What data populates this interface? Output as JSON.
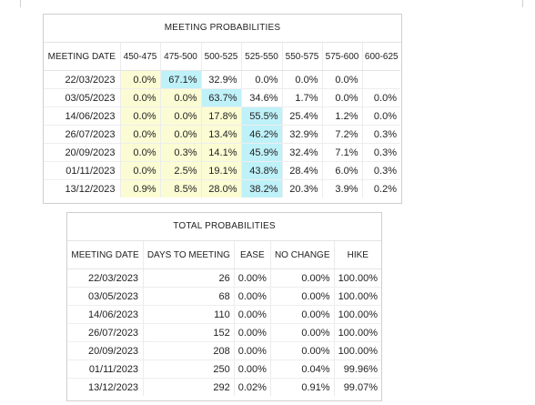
{
  "meeting": {
    "title": "MEETING PROBABILITIES",
    "headers": [
      "MEETING DATE",
      "450-475",
      "475-500",
      "500-525",
      "525-550",
      "550-575",
      "575-600",
      "600-625"
    ],
    "rows": [
      {
        "date": "22/03/2023",
        "cells": [
          {
            "v": "0.0%",
            "c": "yellow"
          },
          {
            "v": "67.1%",
            "c": "cyan"
          },
          {
            "v": "32.9%",
            "c": "white"
          },
          {
            "v": "0.0%",
            "c": "white"
          },
          {
            "v": "0.0%",
            "c": "white"
          },
          {
            "v": "0.0%",
            "c": "white"
          },
          {
            "v": "",
            "c": "white"
          }
        ]
      },
      {
        "date": "03/05/2023",
        "cells": [
          {
            "v": "0.0%",
            "c": "yellow"
          },
          {
            "v": "0.0%",
            "c": "yellow"
          },
          {
            "v": "63.7%",
            "c": "cyan"
          },
          {
            "v": "34.6%",
            "c": "white"
          },
          {
            "v": "1.7%",
            "c": "white"
          },
          {
            "v": "0.0%",
            "c": "white"
          },
          {
            "v": "0.0%",
            "c": "white"
          }
        ]
      },
      {
        "date": "14/06/2023",
        "cells": [
          {
            "v": "0.0%",
            "c": "yellow"
          },
          {
            "v": "0.0%",
            "c": "yellow"
          },
          {
            "v": "17.8%",
            "c": "yellow"
          },
          {
            "v": "55.5%",
            "c": "cyan"
          },
          {
            "v": "25.4%",
            "c": "white"
          },
          {
            "v": "1.2%",
            "c": "white"
          },
          {
            "v": "0.0%",
            "c": "white"
          }
        ]
      },
      {
        "date": "26/07/2023",
        "cells": [
          {
            "v": "0.0%",
            "c": "yellow"
          },
          {
            "v": "0.0%",
            "c": "yellow"
          },
          {
            "v": "13.4%",
            "c": "yellow"
          },
          {
            "v": "46.2%",
            "c": "cyan"
          },
          {
            "v": "32.9%",
            "c": "white"
          },
          {
            "v": "7.2%",
            "c": "white"
          },
          {
            "v": "0.3%",
            "c": "white"
          }
        ]
      },
      {
        "date": "20/09/2023",
        "cells": [
          {
            "v": "0.0%",
            "c": "yellow"
          },
          {
            "v": "0.3%",
            "c": "yellow"
          },
          {
            "v": "14.1%",
            "c": "yellow"
          },
          {
            "v": "45.9%",
            "c": "cyan"
          },
          {
            "v": "32.4%",
            "c": "white"
          },
          {
            "v": "7.1%",
            "c": "white"
          },
          {
            "v": "0.3%",
            "c": "white"
          }
        ]
      },
      {
        "date": "01/11/2023",
        "cells": [
          {
            "v": "0.0%",
            "c": "yellow"
          },
          {
            "v": "2.5%",
            "c": "yellow"
          },
          {
            "v": "19.1%",
            "c": "yellow"
          },
          {
            "v": "43.8%",
            "c": "cyan"
          },
          {
            "v": "28.4%",
            "c": "white"
          },
          {
            "v": "6.0%",
            "c": "white"
          },
          {
            "v": "0.3%",
            "c": "white"
          }
        ]
      },
      {
        "date": "13/12/2023",
        "cells": [
          {
            "v": "0.9%",
            "c": "yellow"
          },
          {
            "v": "8.5%",
            "c": "yellow"
          },
          {
            "v": "28.0%",
            "c": "yellow"
          },
          {
            "v": "38.2%",
            "c": "cyan"
          },
          {
            "v": "20.3%",
            "c": "white"
          },
          {
            "v": "3.9%",
            "c": "white"
          },
          {
            "v": "0.2%",
            "c": "white"
          }
        ]
      }
    ]
  },
  "total": {
    "title": "TOTAL PROBABILITIES",
    "headers": [
      "MEETING DATE",
      "DAYS TO MEETING",
      "EASE",
      "NO CHANGE",
      "HIKE"
    ],
    "rows": [
      {
        "date": "22/03/2023",
        "days": "26",
        "ease": "0.00%",
        "no_change": "0.00%",
        "hike": "100.00%"
      },
      {
        "date": "03/05/2023",
        "days": "68",
        "ease": "0.00%",
        "no_change": "0.00%",
        "hike": "100.00%"
      },
      {
        "date": "14/06/2023",
        "days": "110",
        "ease": "0.00%",
        "no_change": "0.00%",
        "hike": "100.00%"
      },
      {
        "date": "26/07/2023",
        "days": "152",
        "ease": "0.00%",
        "no_change": "0.00%",
        "hike": "100.00%"
      },
      {
        "date": "20/09/2023",
        "days": "208",
        "ease": "0.00%",
        "no_change": "0.00%",
        "hike": "100.00%"
      },
      {
        "date": "01/11/2023",
        "days": "250",
        "ease": "0.00%",
        "no_change": "0.04%",
        "hike": "99.96%"
      },
      {
        "date": "13/12/2023",
        "days": "292",
        "ease": "0.02%",
        "no_change": "0.91%",
        "hike": "99.07%"
      }
    ]
  },
  "colors": {
    "yellow": "#fcfcd4",
    "cyan": "#bff1f9",
    "white": "#ffffff"
  }
}
